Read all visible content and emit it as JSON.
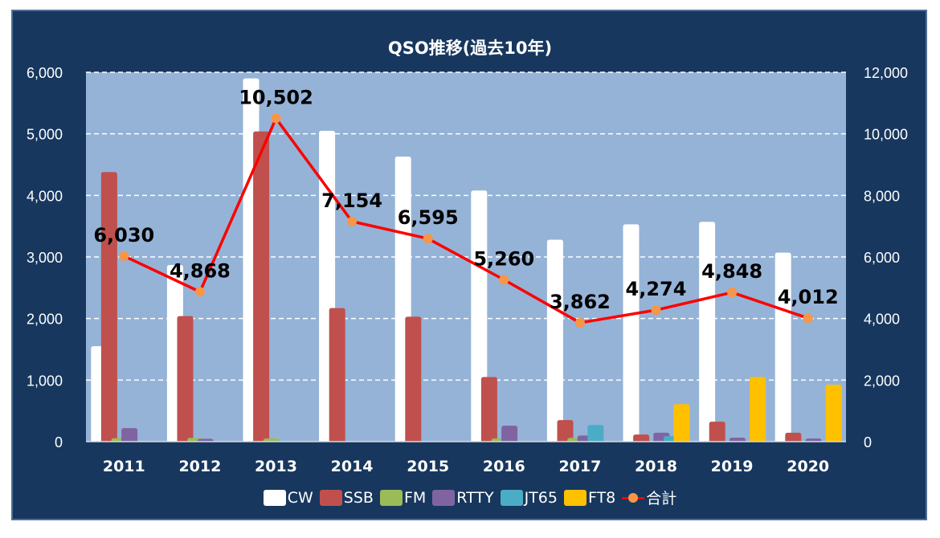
{
  "chart_data": {
    "type": "bar+line",
    "title": "QSO推移(過去10年)",
    "categories": [
      "2011",
      "2012",
      "2013",
      "2014",
      "2015",
      "2016",
      "2017",
      "2018",
      "2019",
      "2020"
    ],
    "y_left": {
      "min": 0,
      "max": 6000,
      "ticks": [
        "0",
        "1,000",
        "2,000",
        "3,000",
        "4,000",
        "5,000",
        "6,000"
      ]
    },
    "y_right": {
      "min": 0,
      "max": 12000,
      "ticks": [
        "0",
        "2,000",
        "4,000",
        "6,000",
        "8,000",
        "10,000",
        "12,000"
      ]
    },
    "grid": true,
    "legend_position": "bottom",
    "series": [
      {
        "name": "CW",
        "color": "#ffffff",
        "axis": "left",
        "values": [
          1550,
          2870,
          5900,
          5050,
          4630,
          4080,
          3280,
          3530,
          3570,
          3070
        ]
      },
      {
        "name": "SSB",
        "color": "#c0504d",
        "axis": "left",
        "values": [
          4380,
          2040,
          5040,
          2170,
          2030,
          1050,
          350,
          115,
          325,
          145
        ]
      },
      {
        "name": "FM",
        "color": "#9bbb59",
        "axis": "left",
        "values": [
          55,
          60,
          50,
          0,
          0,
          50,
          60,
          0,
          0,
          0
        ]
      },
      {
        "name": "RTTY",
        "color": "#8064a2",
        "axis": "left",
        "values": [
          220,
          45,
          0,
          0,
          0,
          260,
          100,
          145,
          65,
          50
        ]
      },
      {
        "name": "JT65",
        "color": "#4bacc6",
        "axis": "left",
        "values": [
          0,
          0,
          0,
          0,
          0,
          0,
          270,
          90,
          0,
          0
        ]
      },
      {
        "name": "FT8",
        "color": "#ffc000",
        "axis": "left",
        "values": [
          0,
          0,
          0,
          0,
          0,
          0,
          0,
          610,
          1050,
          925
        ]
      },
      {
        "name": "合計",
        "color": "#ff0000",
        "marker_color": "#f79646",
        "axis": "right",
        "type": "line",
        "values": [
          6030,
          4868,
          10502,
          7154,
          6595,
          5260,
          3862,
          4274,
          4848,
          4012
        ],
        "labels": [
          "6,030",
          "4,868",
          "10,502",
          "7,154",
          "6,595",
          "5,260",
          "3,862",
          "4,274",
          "4,848",
          "4,012"
        ]
      }
    ]
  }
}
